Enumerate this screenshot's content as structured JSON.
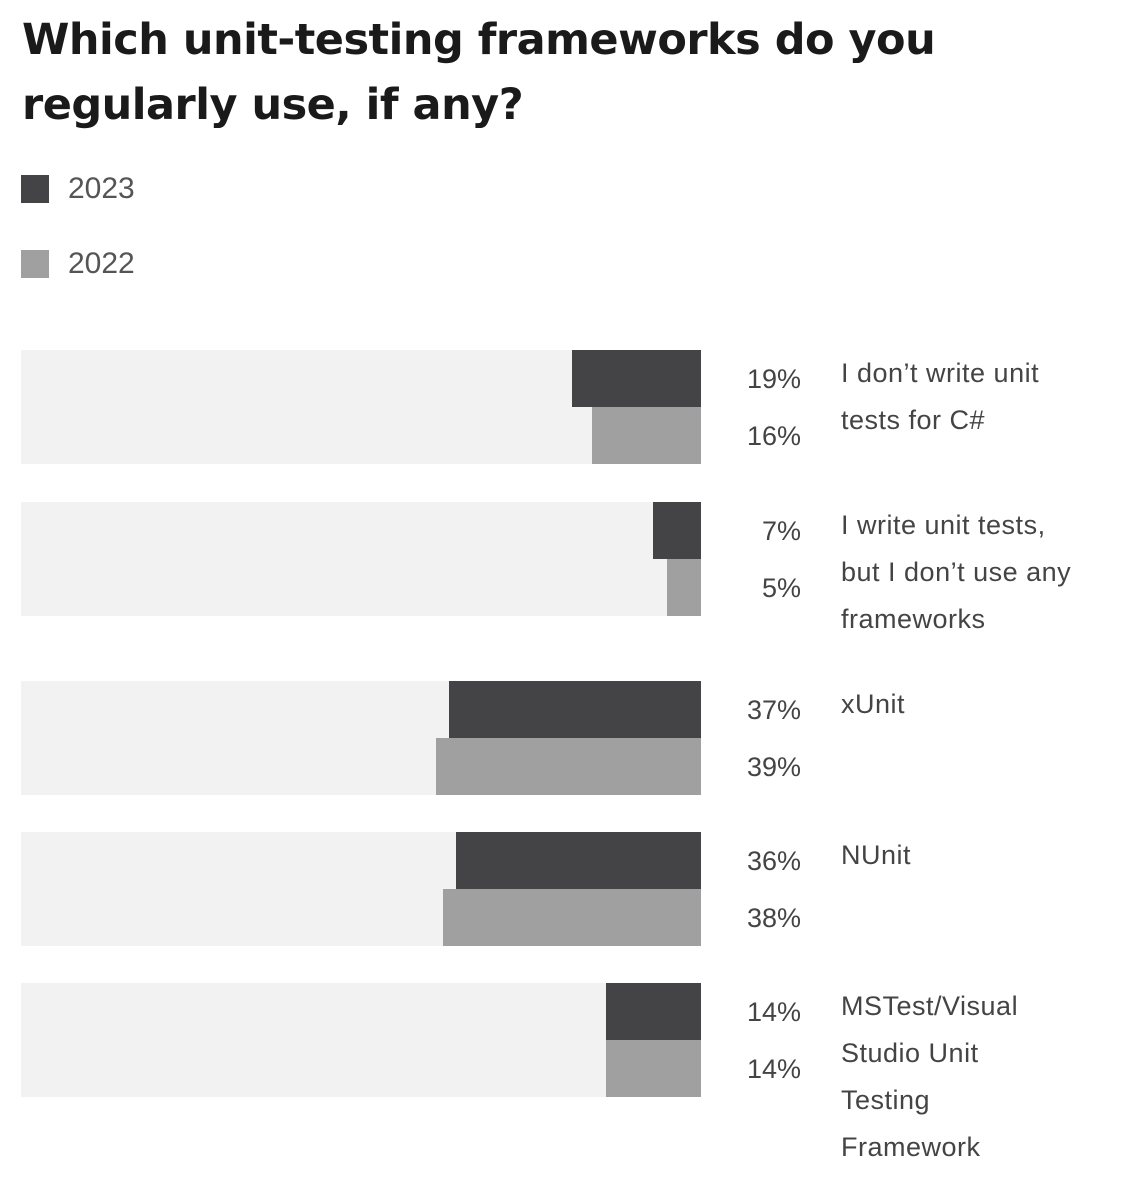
{
  "title": "Which unit-testing frameworks do you regularly use, if any?",
  "colors": {
    "2023": "#444446",
    "2022": "#a0a0a0",
    "track": "#f2f2f2"
  },
  "legend": [
    {
      "label": "2023",
      "color": "#444446"
    },
    {
      "label": "2022",
      "color": "#a0a0a0"
    }
  ],
  "chart_data": {
    "type": "bar",
    "orientation": "horizontal",
    "title": "Which unit-testing frameworks do you regularly use, if any?",
    "xlim": [
      0,
      100
    ],
    "legend_position": "top-left",
    "grid": false,
    "categories": [
      "I don’t write unit tests for C#",
      "I write unit tests, but I don’t use any frameworks",
      "xUnit",
      "NUnit",
      "MSTest/Visual Studio Unit Testing Framework"
    ],
    "category_lines": [
      [
        "I don’t write unit",
        "tests for C#"
      ],
      [
        "I write unit tests,",
        "but I don’t use any",
        "frameworks"
      ],
      [
        "xUnit"
      ],
      [
        "NUnit"
      ],
      [
        "MSTest/Visual",
        "Studio Unit",
        "Testing",
        "Framework"
      ]
    ],
    "series": [
      {
        "name": "2023",
        "values": [
          19,
          7,
          37,
          36,
          14
        ],
        "labels": [
          "19%",
          "7%",
          "37%",
          "36%",
          "14%"
        ]
      },
      {
        "name": "2022",
        "values": [
          16,
          5,
          39,
          38,
          14
        ],
        "labels": [
          "16%",
          "5%",
          "39%",
          "38%",
          "14%"
        ]
      }
    ]
  }
}
